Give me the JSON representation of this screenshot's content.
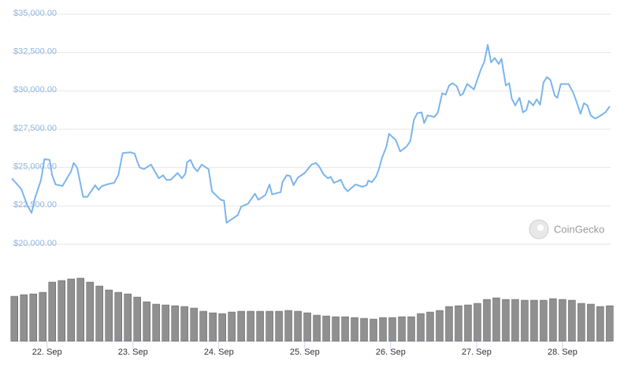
{
  "chart_data": [
    {
      "type": "line",
      "watermark": "CoinGecko",
      "xlim": [
        21.59,
        28.56
      ],
      "ylim": [
        20000,
        35000
      ],
      "yticks": [
        {
          "value": 20000,
          "label": "$20,000.00"
        },
        {
          "value": 22500,
          "label": "$22,500.00"
        },
        {
          "value": 25000,
          "label": "$25,000.00"
        },
        {
          "value": 27500,
          "label": "$27,500.00"
        },
        {
          "value": 30000,
          "label": "$30,000.00"
        },
        {
          "value": 32500,
          "label": "$32,500.00"
        },
        {
          "value": 35000,
          "label": "$35,000.00"
        }
      ],
      "xticks": [
        {
          "value": 22,
          "label": "22. Sep"
        },
        {
          "value": 23,
          "label": "23. Sep"
        },
        {
          "value": 24,
          "label": "24. Sep"
        },
        {
          "value": 25,
          "label": "25. Sep"
        },
        {
          "value": 26,
          "label": "26. Sep"
        },
        {
          "value": 27,
          "label": "27. Sep"
        },
        {
          "value": 28,
          "label": "28. Sep"
        }
      ],
      "grid": true,
      "color": "#7cb5ec",
      "x": [
        21.59,
        21.7,
        21.77,
        21.82,
        21.86,
        21.93,
        21.97,
        22.03,
        22.06,
        22.1,
        22.18,
        22.28,
        22.31,
        22.35,
        22.42,
        22.47,
        22.56,
        22.6,
        22.64,
        22.73,
        22.78,
        22.83,
        22.88,
        22.97,
        23.02,
        23.05,
        23.08,
        23.13,
        23.21,
        23.3,
        23.35,
        23.39,
        23.44,
        23.52,
        23.57,
        23.61,
        23.63,
        23.67,
        23.71,
        23.75,
        23.8,
        23.88,
        23.92,
        24.02,
        24.06,
        24.09,
        24.18,
        24.22,
        24.26,
        24.34,
        24.42,
        24.46,
        24.54,
        24.59,
        24.62,
        24.72,
        24.74,
        24.79,
        24.83,
        24.87,
        24.92,
        25.0,
        25.08,
        25.13,
        25.17,
        25.22,
        25.27,
        25.3,
        25.34,
        25.42,
        25.46,
        25.5,
        25.59,
        25.67,
        25.72,
        25.74,
        25.78,
        25.83,
        25.86,
        25.9,
        25.95,
        25.98,
        26.03,
        26.06,
        26.11,
        26.19,
        26.23,
        26.27,
        26.31,
        26.36,
        26.39,
        26.43,
        26.51,
        26.55,
        26.6,
        26.64,
        26.68,
        26.72,
        26.77,
        26.81,
        26.84,
        26.89,
        26.97,
        27.01,
        27.05,
        27.09,
        27.13,
        27.17,
        27.21,
        27.26,
        27.29,
        27.34,
        27.38,
        27.41,
        27.45,
        27.5,
        27.54,
        27.58,
        27.61,
        27.66,
        27.7,
        27.74,
        27.78,
        27.82,
        27.86,
        27.91,
        27.94,
        27.98,
        28.07,
        28.12,
        28.16,
        28.21,
        28.25,
        28.29,
        28.33,
        28.38,
        28.42,
        28.5,
        28.55
      ],
      "values": [
        24300,
        23600,
        22550,
        22050,
        23000,
        24200,
        25550,
        25500,
        24500,
        23900,
        23800,
        24750,
        25300,
        25000,
        23100,
        23100,
        23850,
        23550,
        23800,
        23950,
        24000,
        24500,
        25950,
        26000,
        25900,
        25400,
        25000,
        24900,
        25200,
        24300,
        24500,
        24200,
        24200,
        24650,
        24300,
        24600,
        25350,
        25500,
        25000,
        24750,
        25200,
        24900,
        23450,
        22900,
        22850,
        21400,
        21750,
        21900,
        22450,
        22650,
        23300,
        22900,
        23200,
        23900,
        23250,
        23400,
        24050,
        24500,
        24450,
        23850,
        24350,
        24650,
        25200,
        25300,
        25050,
        24550,
        24300,
        24400,
        24000,
        24200,
        23700,
        23450,
        23900,
        23750,
        23850,
        24150,
        24050,
        24400,
        24850,
        25650,
        26350,
        27200,
        26950,
        26800,
        26050,
        26400,
        26750,
        28100,
        28550,
        28600,
        27900,
        28400,
        28300,
        28600,
        29850,
        29750,
        30350,
        30500,
        30300,
        29700,
        29800,
        30450,
        30100,
        30750,
        31400,
        31900,
        33000,
        31850,
        32150,
        31750,
        32100,
        30350,
        30500,
        29500,
        29050,
        29550,
        28600,
        28750,
        29350,
        29050,
        29450,
        29100,
        30550,
        30900,
        30700,
        29700,
        29550,
        30450,
        30450,
        29950,
        29350,
        28500,
        29200,
        29050,
        28400,
        28200,
        28300,
        28600,
        29000
      ]
    },
    {
      "type": "bar",
      "color": "#909090",
      "xlim": [
        21.59,
        28.56
      ],
      "ylim": [
        0,
        100
      ],
      "x": [
        21.62,
        21.73,
        21.84,
        21.95,
        22.06,
        22.17,
        22.28,
        22.39,
        22.5,
        22.61,
        22.72,
        22.83,
        22.94,
        23.05,
        23.16,
        23.27,
        23.38,
        23.49,
        23.6,
        23.71,
        23.82,
        23.93,
        24.04,
        24.15,
        24.26,
        24.37,
        24.48,
        24.59,
        24.7,
        24.81,
        24.92,
        25.03,
        25.14,
        25.25,
        25.36,
        25.47,
        25.58,
        25.69,
        25.8,
        25.91,
        26.02,
        26.13,
        26.24,
        26.35,
        26.46,
        26.57,
        26.68,
        26.79,
        26.9,
        27.01,
        27.12,
        27.23,
        27.34,
        27.45,
        27.56,
        27.67,
        27.78,
        27.89,
        28.0,
        28.11,
        28.22,
        28.33,
        28.44,
        28.55
      ],
      "values": [
        57,
        59,
        60,
        62,
        75,
        77,
        79,
        80,
        75,
        70,
        65,
        62,
        60,
        56,
        50,
        47,
        46,
        45,
        44,
        42,
        38,
        36,
        35,
        37,
        38,
        38,
        38,
        38,
        38,
        39,
        38,
        36,
        33,
        32,
        31,
        31,
        30,
        29,
        28,
        30,
        30,
        31,
        31,
        35,
        37,
        39,
        44,
        45,
        46,
        48,
        53,
        55,
        53,
        53,
        52,
        52,
        52,
        54,
        53,
        52,
        48,
        47,
        44,
        45
      ]
    }
  ]
}
